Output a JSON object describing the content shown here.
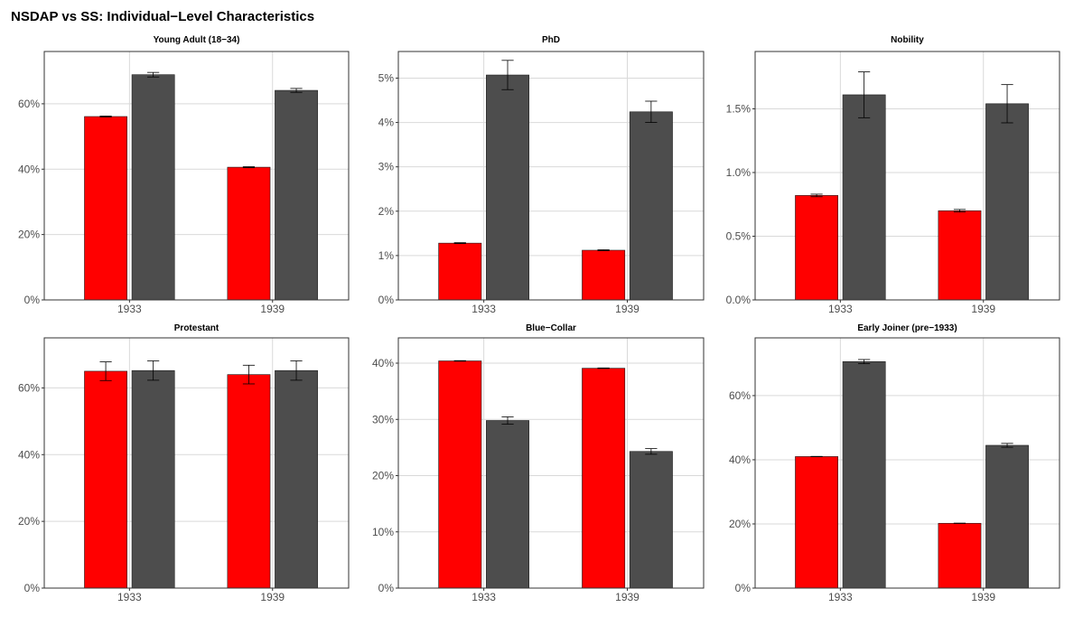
{
  "title": "NSDAP vs SS: Individual−Level Characteristics",
  "colors": {
    "nsdap": "#ff0000",
    "ss": "#4d4d4d",
    "grid": "#d9d9d9",
    "border": "#333333"
  },
  "chart_data": [
    {
      "type": "bar",
      "title": "Young Adult (18−34)",
      "categories": [
        "1933",
        "1939"
      ],
      "yticks": [
        0,
        20,
        40,
        60
      ],
      "ylim": [
        0,
        76
      ],
      "ytick_labels": [
        "0%",
        "20%",
        "40%",
        "60%"
      ],
      "series": [
        {
          "color": "#ff0000",
          "values": [
            56.1,
            40.6
          ],
          "err": [
            0.15,
            0.15
          ]
        },
        {
          "color": "#4d4d4d",
          "values": [
            68.9,
            64.1
          ],
          "err": [
            0.7,
            0.6
          ]
        }
      ]
    },
    {
      "type": "bar",
      "title": "PhD",
      "categories": [
        "1933",
        "1939"
      ],
      "yticks": [
        0,
        1,
        2,
        3,
        4,
        5
      ],
      "ylim": [
        0,
        5.6
      ],
      "ytick_labels": [
        "0%",
        "1%",
        "2%",
        "3%",
        "4%",
        "5%"
      ],
      "series": [
        {
          "color": "#ff0000",
          "values": [
            1.28,
            1.12
          ],
          "err": [
            0.01,
            0.01
          ]
        },
        {
          "color": "#4d4d4d",
          "values": [
            5.07,
            4.24
          ],
          "err": [
            0.33,
            0.24
          ]
        }
      ]
    },
    {
      "type": "bar",
      "title": "Nobility",
      "categories": [
        "1933",
        "1939"
      ],
      "yticks": [
        0,
        0.5,
        1.0,
        1.5
      ],
      "ylim": [
        0,
        1.95
      ],
      "ytick_labels": [
        "0.0%",
        "0.5%",
        "1.0%",
        "1.5%"
      ],
      "series": [
        {
          "color": "#ff0000",
          "values": [
            0.82,
            0.7
          ],
          "err": [
            0.01,
            0.01
          ]
        },
        {
          "color": "#4d4d4d",
          "values": [
            1.61,
            1.54
          ],
          "err": [
            0.18,
            0.15
          ]
        }
      ]
    },
    {
      "type": "bar",
      "title": "Protestant",
      "categories": [
        "1933",
        "1939"
      ],
      "yticks": [
        0,
        20,
        40,
        60
      ],
      "ylim": [
        0,
        75
      ],
      "ytick_labels": [
        "0%",
        "20%",
        "40%",
        "60%"
      ],
      "series": [
        {
          "color": "#ff0000",
          "values": [
            65.0,
            64.0
          ],
          "err": [
            2.8,
            2.8
          ]
        },
        {
          "color": "#4d4d4d",
          "values": [
            65.2,
            65.2
          ],
          "err": [
            2.9,
            2.9
          ]
        }
      ]
    },
    {
      "type": "bar",
      "title": "Blue−Collar",
      "categories": [
        "1933",
        "1939"
      ],
      "yticks": [
        0,
        10,
        20,
        30,
        40
      ],
      "ylim": [
        0,
        44.5
      ],
      "ytick_labels": [
        "0%",
        "10%",
        "20%",
        "30%",
        "40%"
      ],
      "series": [
        {
          "color": "#ff0000",
          "values": [
            40.4,
            39.1
          ],
          "err": [
            0.05,
            0.05
          ]
        },
        {
          "color": "#4d4d4d",
          "values": [
            29.8,
            24.3
          ],
          "err": [
            0.65,
            0.5
          ]
        }
      ]
    },
    {
      "type": "bar",
      "title": "Early Joiner (pre−1933)",
      "categories": [
        "1933",
        "1939"
      ],
      "yticks": [
        0,
        20,
        40,
        60
      ],
      "ylim": [
        0,
        78
      ],
      "ytick_labels": [
        "0%",
        "20%",
        "40%",
        "60%"
      ],
      "series": [
        {
          "color": "#ff0000",
          "values": [
            41.0,
            20.2
          ],
          "err": [
            0.05,
            0.05
          ]
        },
        {
          "color": "#4d4d4d",
          "values": [
            70.6,
            44.5
          ],
          "err": [
            0.65,
            0.6
          ]
        }
      ]
    }
  ]
}
